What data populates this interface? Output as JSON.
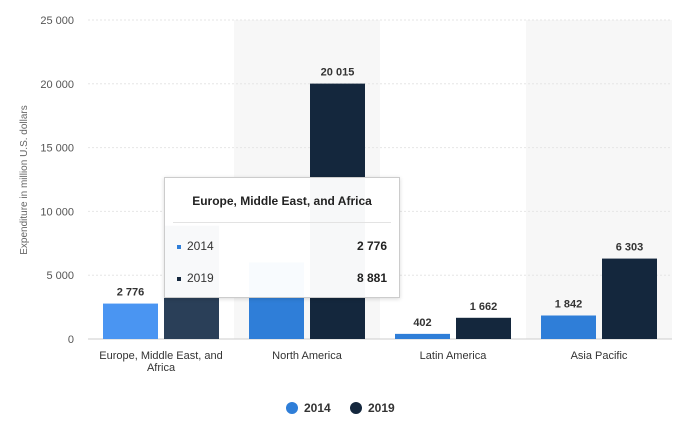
{
  "chart_data": {
    "type": "bar",
    "title": "",
    "xlabel": "",
    "ylabel": "Expenditure in million U.S. dollars",
    "ylim": [
      0,
      25000
    ],
    "yticks": [
      0,
      5000,
      10000,
      15000,
      20000,
      25000
    ],
    "ytick_labels": [
      "0",
      "5 000",
      "10 000",
      "15 000",
      "20 000",
      "25 000"
    ],
    "categories": [
      "Europe, Middle East, and Africa",
      "North America",
      "Latin America",
      "Asia Pacific"
    ],
    "category_lines": [
      [
        "Europe, Middle East, and",
        "Africa"
      ],
      [
        "North America"
      ],
      [
        "Latin America"
      ],
      [
        "Asia Pacific"
      ]
    ],
    "series": [
      {
        "name": "2014",
        "values": [
          2776,
          6000,
          402,
          1842
        ],
        "labels": [
          "2 776",
          "",
          "402",
          "1 842"
        ],
        "color": "#2f7ed8"
      },
      {
        "name": "2019",
        "values": [
          8881,
          20015,
          1662,
          6303
        ],
        "labels": [
          "",
          "20 015",
          "1 662",
          "6 303"
        ],
        "color": "#14273d"
      }
    ],
    "grid": true,
    "legend": "bottom-center",
    "highlighted_category": 0
  },
  "tooltip": {
    "title": "Europe, Middle East, and Africa",
    "rows": [
      {
        "series": "2014",
        "value": "2 776",
        "color": "#2f7ed8"
      },
      {
        "series": "2019",
        "value": "8 881",
        "color": "#14273d"
      }
    ]
  }
}
